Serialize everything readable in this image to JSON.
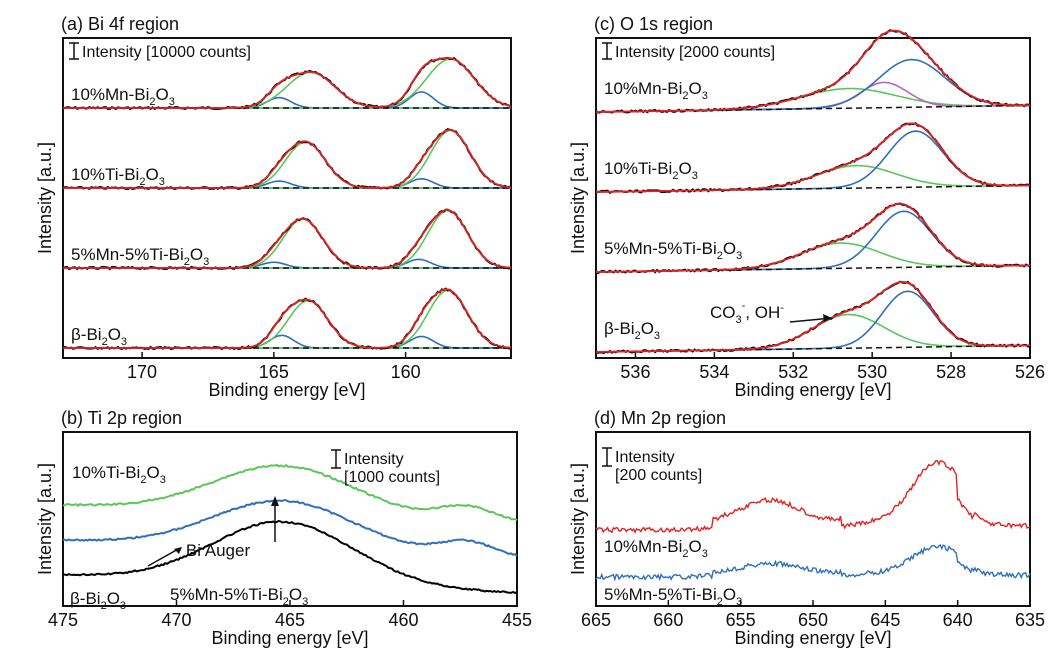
{
  "chart_data": [
    {
      "id": "a",
      "type": "line",
      "title": "(a) Bi 4f region",
      "xlabel": "Binding energy [eV]",
      "ylabel": "Intensity [a.u.]",
      "xlim": [
        173,
        156
      ],
      "x_ticks": [
        "170",
        "165",
        "160"
      ],
      "scale_bar": "Intensity [10000 counts]",
      "samples": [
        {
          "label": "10%Mn-Bi",
          "sub": "2",
          "label2": "O",
          "sub2": "3",
          "peaks": [
            [
              164.8,
              0.18,
              0.45
            ],
            [
              163.6,
              0.62,
              0.9
            ],
            [
              159.4,
              0.28,
              0.45
            ],
            [
              158.3,
              0.85,
              0.9
            ]
          ]
        },
        {
          "label": "10%Ti-Bi",
          "sub": "2",
          "label2": "O",
          "sub2": "3",
          "peaks": [
            [
              164.8,
              0.12,
              0.45
            ],
            [
              163.8,
              0.8,
              0.75
            ],
            [
              159.4,
              0.16,
              0.45
            ],
            [
              158.3,
              1.0,
              0.75
            ]
          ]
        },
        {
          "label": "5%Mn-5%Ti-Bi",
          "sub": "2",
          "label2": "O",
          "sub2": "3",
          "peaks": [
            [
              165.0,
              0.1,
              0.45
            ],
            [
              163.9,
              0.85,
              0.75
            ],
            [
              159.5,
              0.15,
              0.45
            ],
            [
              158.4,
              1.0,
              0.75
            ]
          ]
        },
        {
          "label": "β-Bi",
          "sub": "2",
          "label2": "O",
          "sub2": "3",
          "peaks": [
            [
              164.7,
              0.22,
              0.45
            ],
            [
              163.7,
              0.82,
              0.75
            ],
            [
              159.4,
              0.2,
              0.45
            ],
            [
              158.4,
              1.0,
              0.75
            ]
          ]
        }
      ]
    },
    {
      "id": "c",
      "type": "line",
      "title": "(c) O 1s region",
      "xlabel": "Binding energy [eV]",
      "ylabel": "Intensity [a.u.]",
      "xlim": [
        537,
        526
      ],
      "x_ticks": [
        "536",
        "534",
        "532",
        "530",
        "528",
        "526"
      ],
      "scale_bar": "Intensity [2000 counts]",
      "annotation": {
        "text": "CO",
        "sub": "3",
        "sup": "-",
        "text2": ", OH",
        "sup2": "-"
      },
      "samples": [
        {
          "label": "10%Mn-Bi",
          "sub": "2",
          "label2": "O",
          "sub2": "3",
          "peaks": [
            [
              530.6,
              0.35,
              1.2
            ],
            [
              529.7,
              0.45,
              0.6
            ],
            [
              529.0,
              0.85,
              0.85
            ]
          ]
        },
        {
          "label": "10%Ti-Bi",
          "sub": "2",
          "label2": "O",
          "sub2": "3",
          "peaks": [
            [
              530.4,
              0.4,
              1.0
            ],
            [
              528.9,
              1.0,
              0.7
            ]
          ]
        },
        {
          "label": "5%Mn-5%Ti-Bi",
          "sub": "2",
          "label2": "O",
          "sub2": "3",
          "peaks": [
            [
              530.8,
              0.45,
              1.0
            ],
            [
              529.2,
              1.0,
              0.7
            ]
          ]
        },
        {
          "label": "β-Bi",
          "sub": "2",
          "label2": "O",
          "sub2": "3",
          "peaks": [
            [
              530.6,
              0.6,
              0.9
            ],
            [
              529.1,
              1.0,
              0.65
            ]
          ]
        }
      ]
    },
    {
      "id": "b",
      "type": "line",
      "title": "(b) Ti 2p region",
      "xlabel": "Binding energy [eV]",
      "ylabel": "Intensity [a.u.]",
      "xlim": [
        475,
        455
      ],
      "x_ticks": [
        "475",
        "470",
        "465",
        "460",
        "455"
      ],
      "scale_bar": "Intensity",
      "scale_bar2": "[1000 counts]",
      "annotation": "Bi Auger",
      "samples": [
        {
          "label": "10%Ti-Bi",
          "sub": "2",
          "label2": "O",
          "sub2": "3",
          "color": "#5cc65c"
        },
        {
          "label": "5%Mn-5%Ti-Bi",
          "sub": "2",
          "label2": "O",
          "sub2": "3",
          "color": "#2f6fbd"
        },
        {
          "label": "β-Bi",
          "sub": "2",
          "label2": "O",
          "sub2": "3",
          "color": "#000000"
        }
      ]
    },
    {
      "id": "d",
      "type": "line",
      "title": "(d) Mn 2p region",
      "xlabel": "Binding energy [eV]",
      "ylabel": "Intensity [a.u.]",
      "xlim": [
        665,
        635
      ],
      "x_ticks": [
        "665",
        "660",
        "655",
        "650",
        "645",
        "640",
        "635"
      ],
      "scale_bar": "Intensity",
      "scale_bar2": "[200 counts]",
      "samples": [
        {
          "label": "10%Mn-Bi",
          "sub": "2",
          "label2": "O",
          "sub2": "3",
          "color": "#e02424"
        },
        {
          "label": "5%Mn-5%Ti-Bi",
          "sub": "2",
          "label2": "O",
          "sub2": "3",
          "color": "#2f6fbd"
        }
      ]
    }
  ],
  "colors": {
    "envelope": "#e02424",
    "component_main": "#5cc65c",
    "component_minor": "#2f6fbd",
    "component_extra": "#c060c8",
    "data": "#000000",
    "background": "#000000"
  }
}
